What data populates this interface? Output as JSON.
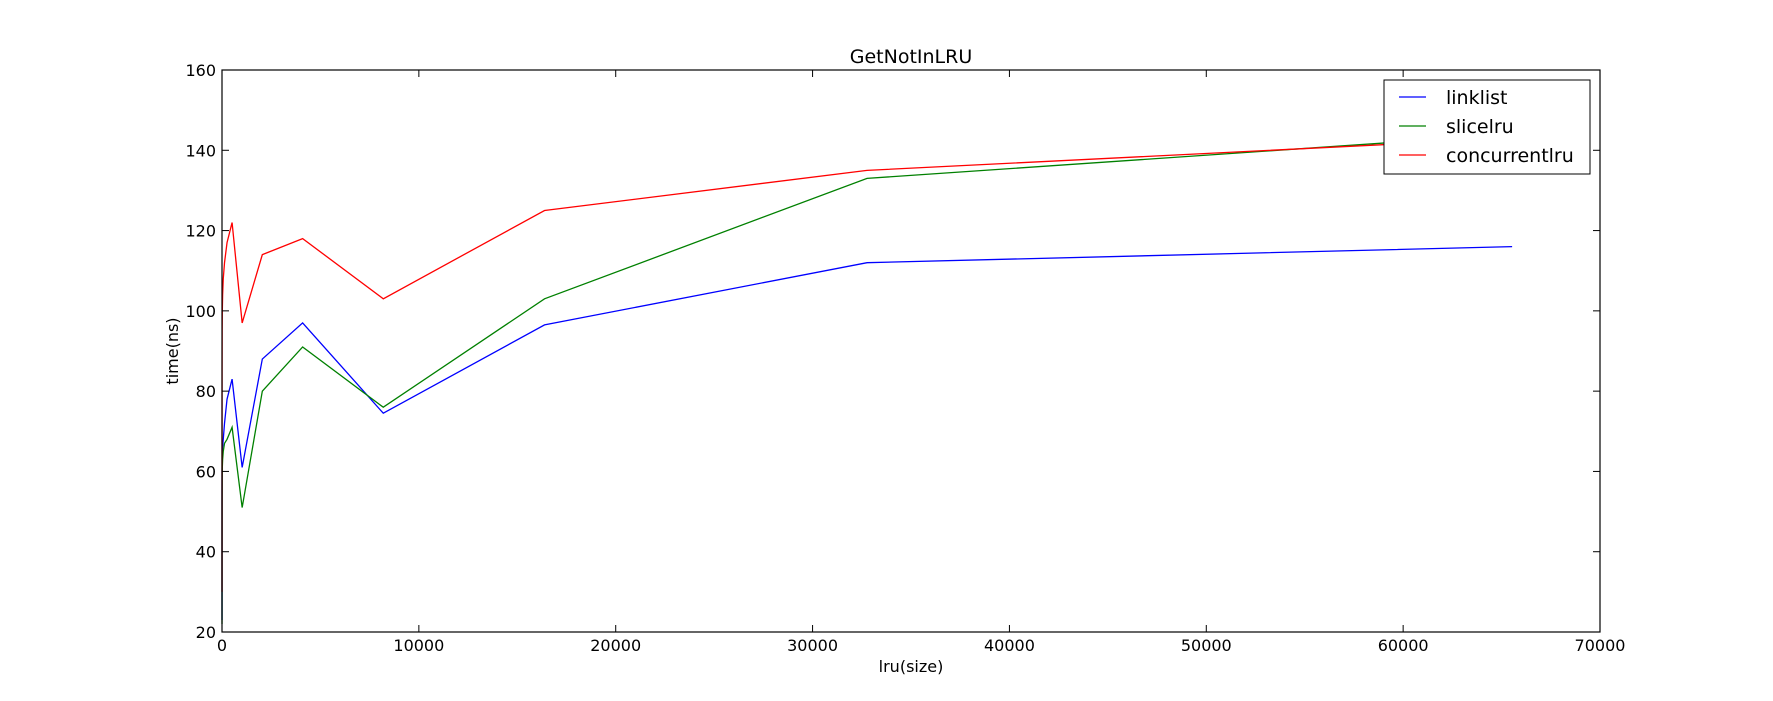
{
  "chart_data": {
    "type": "line",
    "title": "GetNotInLRU",
    "xlabel": "lru(size)",
    "ylabel": "time(ns)",
    "xlim": [
      0,
      70000
    ],
    "ylim": [
      20,
      160
    ],
    "xticks": [
      0,
      10000,
      20000,
      30000,
      40000,
      50000,
      60000,
      70000
    ],
    "xtick_labels": [
      "0",
      "10000",
      "20000",
      "30000",
      "40000",
      "50000",
      "60000",
      "70000"
    ],
    "yticks": [
      20,
      40,
      60,
      80,
      100,
      120,
      140,
      160
    ],
    "ytick_labels": [
      "20",
      "40",
      "60",
      "80",
      "100",
      "120",
      "140",
      "160"
    ],
    "grid": false,
    "legend_position": "top-right",
    "series": [
      {
        "name": "linklist",
        "color": "#0000ff",
        "x": [
          1,
          2,
          4,
          8,
          16,
          32,
          64,
          128,
          256,
          512,
          1024,
          2048,
          4096,
          8192,
          16384,
          32768,
          65536
        ],
        "y": [
          23,
          55,
          60,
          62,
          64,
          66,
          68,
          72,
          78,
          83,
          61,
          88,
          97,
          74.5,
          96.5,
          112,
          116
        ]
      },
      {
        "name": "slicelru",
        "color": "#008000",
        "x": [
          1,
          2,
          4,
          8,
          16,
          32,
          64,
          128,
          256,
          512,
          1024,
          2048,
          4096,
          8192,
          16384,
          32768,
          65536
        ],
        "y": [
          22,
          40,
          52,
          58,
          61,
          63,
          65,
          67,
          68,
          71,
          51,
          80,
          91,
          76,
          103,
          133,
          144
        ]
      },
      {
        "name": "concurrentlru",
        "color": "#ff0000",
        "x": [
          1,
          2,
          4,
          8,
          16,
          32,
          64,
          128,
          256,
          512,
          1024,
          2048,
          4096,
          8192,
          16384,
          32768,
          65536
        ],
        "y": [
          30,
          65,
          85,
          95,
          100,
          104,
          108,
          112,
          117,
          122,
          97,
          114,
          118,
          103,
          125,
          135,
          143
        ]
      }
    ]
  }
}
